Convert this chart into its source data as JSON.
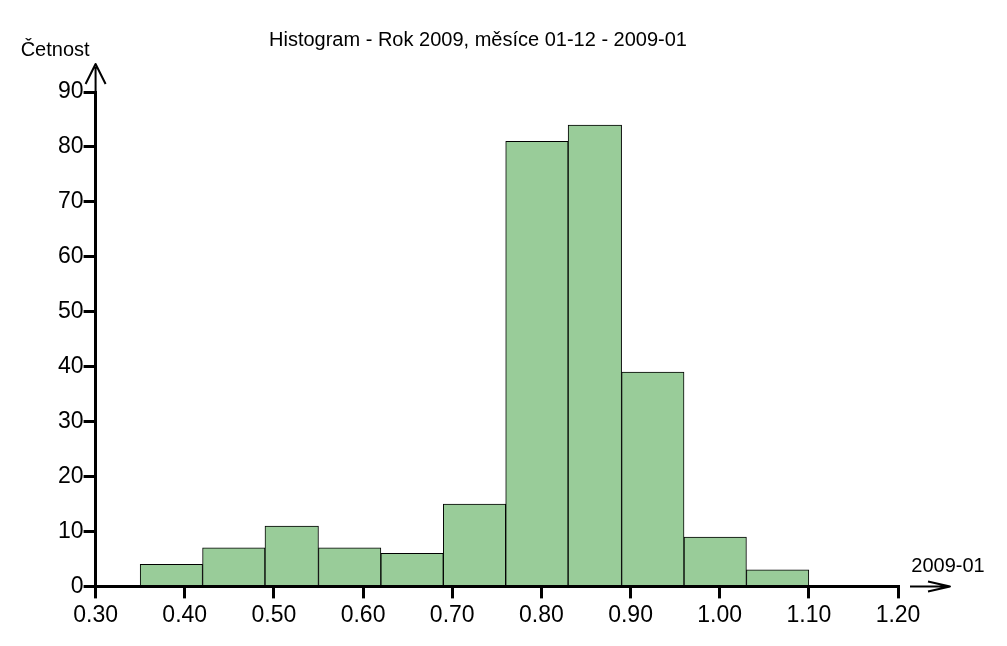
{
  "chart_data": {
    "type": "histogram",
    "title": "Histogram - Rok 2009, měsíce 01-12 - 2009-01",
    "xlabel": "2009-01",
    "ylabel": "Četnost",
    "bins": [
      0.35,
      0.42,
      0.49,
      0.55,
      0.62,
      0.69,
      0.76,
      0.83,
      0.89,
      0.96,
      1.03,
      1.1
    ],
    "values": [
      4,
      7,
      11,
      7,
      6,
      15,
      81,
      84,
      39,
      9,
      3
    ],
    "color": "#99cc99",
    "xlim": [
      0.3,
      1.2
    ],
    "xticks": [
      {
        "value": 0.3,
        "label": "0.30"
      },
      {
        "value": 0.4,
        "label": "0.40"
      },
      {
        "value": 0.5,
        "label": "0.50"
      },
      {
        "value": 0.6,
        "label": "0.60"
      },
      {
        "value": 0.7,
        "label": "0.70"
      },
      {
        "value": 0.8,
        "label": "0.80"
      },
      {
        "value": 0.9,
        "label": "0.90"
      },
      {
        "value": 1.0,
        "label": "1.00"
      },
      {
        "value": 1.1,
        "label": "1.10"
      },
      {
        "value": 1.2,
        "label": "1.20"
      }
    ],
    "ylim": [
      0,
      90
    ],
    "yticks": [
      0,
      10,
      20,
      30,
      40,
      50,
      60,
      70,
      80,
      90
    ],
    "grid": false,
    "legend": false
  }
}
